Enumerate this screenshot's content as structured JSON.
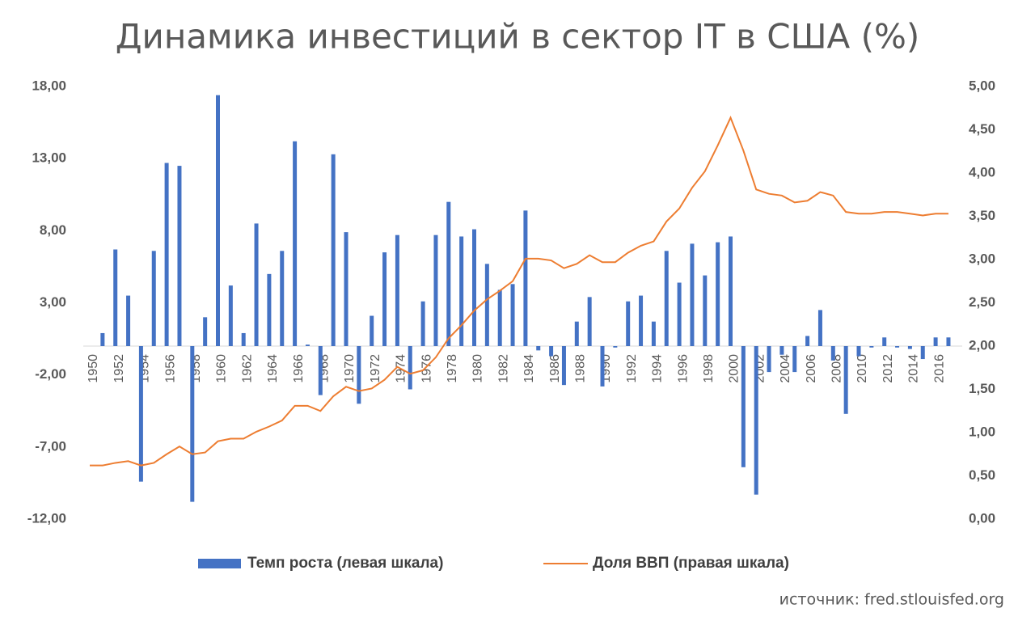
{
  "chart_data": {
    "type": "bar-line",
    "title": "Динамика инвестиций в сектор IT в США (%)",
    "source": "источник: fred.stlouisfed.org",
    "categories": [
      "1950",
      null,
      "1952",
      null,
      "1954",
      null,
      "1956",
      null,
      "1958",
      null,
      "1960",
      null,
      "1962",
      null,
      "1964",
      null,
      "1966",
      null,
      "1968",
      null,
      "1970",
      null,
      "1972",
      null,
      "1974",
      null,
      "1976",
      null,
      "1978",
      null,
      "1980",
      null,
      "1982",
      null,
      "1984",
      null,
      "1986",
      null,
      "1988",
      null,
      "1990",
      null,
      "1992",
      null,
      "1994",
      null,
      "1996",
      null,
      "1998",
      null,
      "2000",
      null,
      "2002",
      null,
      "2004",
      null,
      "2006",
      null,
      "2008",
      null,
      "2010",
      null,
      "2012",
      null,
      "2014",
      null,
      "2016",
      null
    ],
    "series": [
      {
        "name": "Темп роста (левая шкала)",
        "type": "bar",
        "color": "#4472c4",
        "values": [
          0,
          0.9,
          6.7,
          3.5,
          -9.4,
          6.6,
          12.7,
          12.5,
          -10.8,
          2.0,
          17.4,
          4.2,
          0.9,
          8.5,
          5.0,
          6.6,
          14.2,
          0.1,
          -3.4,
          13.3,
          7.9,
          -4.0,
          2.1,
          6.5,
          7.7,
          -3.0,
          3.1,
          7.7,
          10.0,
          7.6,
          8.1,
          5.7,
          3.9,
          4.3,
          9.4,
          -0.3,
          -0.7,
          -2.7,
          1.7,
          3.4,
          -2.8,
          -0.1,
          3.1,
          3.5,
          1.7,
          6.6,
          4.4,
          7.1,
          4.9,
          7.2,
          7.6,
          -8.4,
          -10.3,
          -1.8,
          -0.6,
          -1.8,
          0.7,
          2.5,
          -1.0,
          -4.7,
          -0.7,
          -0.1,
          0.6,
          -0.1,
          -0.2,
          -0.9,
          0.6,
          0.6
        ]
      },
      {
        "name": "Доля ВВП (правая шкала)",
        "type": "line",
        "axis": "y2",
        "color": "#ed7d31",
        "values": [
          0.62,
          0.62,
          0.65,
          0.67,
          0.62,
          0.65,
          0.75,
          0.84,
          0.75,
          0.77,
          0.9,
          0.93,
          0.93,
          1.01,
          1.07,
          1.14,
          1.31,
          1.31,
          1.25,
          1.42,
          1.53,
          1.48,
          1.51,
          1.61,
          1.76,
          1.68,
          1.72,
          1.87,
          2.09,
          2.24,
          2.41,
          2.54,
          2.64,
          2.75,
          3.01,
          3.01,
          2.99,
          2.9,
          2.95,
          3.05,
          2.97,
          2.97,
          3.08,
          3.16,
          3.21,
          3.44,
          3.59,
          3.83,
          4.02,
          4.32,
          4.64,
          4.26,
          3.81,
          3.76,
          3.74,
          3.66,
          3.68,
          3.78,
          3.74,
          3.55,
          3.53,
          3.53,
          3.55,
          3.55,
          3.53,
          3.51,
          3.53,
          3.53
        ]
      }
    ],
    "ylim": [
      -12,
      18
    ],
    "yticks": [
      {
        "value": -12,
        "label": "-12,00"
      },
      {
        "value": -7,
        "label": "-7,00"
      },
      {
        "value": -2,
        "label": "-2,00"
      },
      {
        "value": 3,
        "label": "3,00"
      },
      {
        "value": 8,
        "label": "8,00"
      },
      {
        "value": 13,
        "label": "13,00"
      },
      {
        "value": 18,
        "label": "18,00"
      }
    ],
    "y2lim": [
      0,
      5
    ],
    "y2ticks": [
      {
        "value": 0,
        "label": "0,00"
      },
      {
        "value": 0.5,
        "label": "0,50"
      },
      {
        "value": 1,
        "label": "1,00"
      },
      {
        "value": 1.5,
        "label": "1,50"
      },
      {
        "value": 2,
        "label": "2,00"
      },
      {
        "value": 2.5,
        "label": "2,50"
      },
      {
        "value": 3,
        "label": "3,00"
      },
      {
        "value": 3.5,
        "label": "3,50"
      },
      {
        "value": 4,
        "label": "4,00"
      },
      {
        "value": 4.5,
        "label": "4,50"
      },
      {
        "value": 5,
        "label": "5,00"
      }
    ],
    "legend": "bottom"
  }
}
